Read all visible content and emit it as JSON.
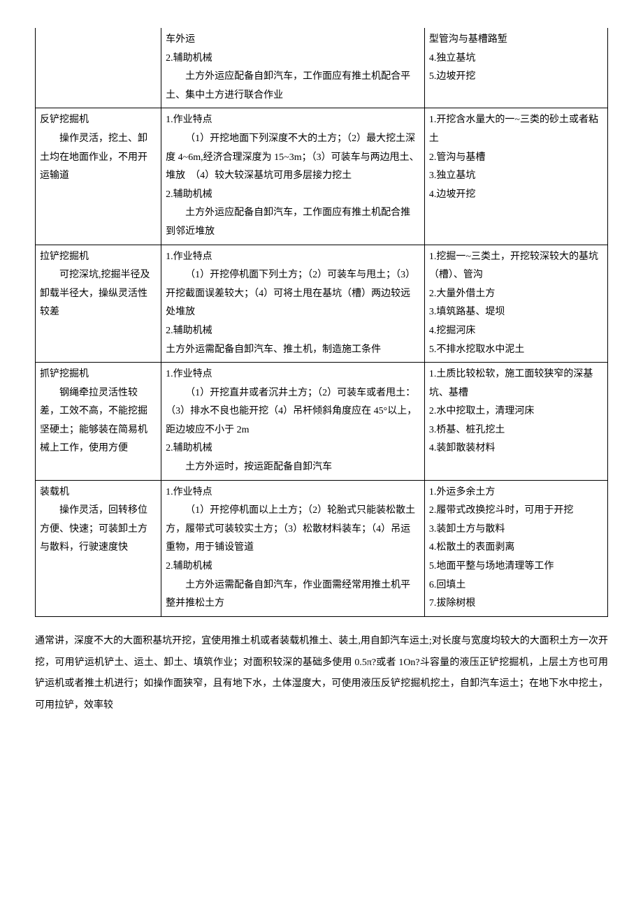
{
  "rows": [
    {
      "c1": "",
      "c2": "车外运\n2.辅助机械\n　　土方外运应配备自卸汽车，工作面应有推土机配合平土、集中土方进行联合作业",
      "c3": "型管沟与基槽路堑\n4.独立基坑\n5.边坡开挖"
    },
    {
      "c1": "反铲挖掘机\n　　操作灵活，挖土、卸土均在地面作业，不用开运输道",
      "c2": "1.作业特点\n　　（1）开挖地面下列深度不大的土方；（2）最大挖土深度 4~6m,经济合理深度为 15~3m；（3）可装车与两边甩土、堆放　（4）较大较深基坑可用多层接力挖土\n2.辅助机械\n　　土方外运应配备自卸汽车，工作面应有推土机配合推到邻近堆放",
      "c3": "1.开挖含水量大的一~三类的砂土或者粘土\n2.管沟与基槽\n3.独立基坑\n4.边坡开挖"
    },
    {
      "c1": "拉铲挖掘机\n　　可挖深坑,挖掘半径及卸载半径大，操纵灵活性较差",
      "c2": "1.作业特点\n　　（1）开挖停机面下列土方；（2）可装车与甩土；（3）开挖截面误差较大；（4）可将土甩在基坑（槽）两边较远处堆放\n2.辅助机械\n土方外运需配备自卸汽车、推土机，制造施工条件",
      "c3": "1.挖掘一~三类土，开挖较深较大的基坑（槽）、管沟\n2.大量外借土方\n3.填筑路基、堤坝\n4.挖掘河床\n5.不排水挖取水中泥土"
    },
    {
      "c1": "抓铲挖掘机\n　　钢绳牵拉灵活性较差，工效不高，不能挖掘坚硬土；能够装在简易机械上工作，使用方便",
      "c2": "1.作业特点\n　　（1）开挖直井或者沉井土方；（2）可装车或者甩土：（3）排水不良也能开挖（4）吊杆倾斜角度应在 45°以上，距边坡应不小于 2m\n2.辅助机械\n　　土方外运时，按运距配备自卸汽车",
      "c3": "1.土质比较松软，施工面较狭窄的深基坑、基槽\n2.水中挖取土，清理河床\n3.桥基、桩孔挖土\n4.装卸散装材料"
    },
    {
      "c1": "装载机\n　　操作灵活，回转移位方便、快速；可装卸土方与散料，行驶速度快",
      "c2": "1.作业特点\n　　（1）开挖停机面以上土方；（2）轮胎式只能装松散土方，履带式可装较实土方；（3）松散材料装车；（4）吊运重物，用于铺设管道\n2.辅助机械\n　　土方外运需配备自卸汽车，作业面需经常用推土机平整并推松土方",
      "c3": "1.外运多余土方\n2.履带式改换挖斗时，可用于开挖\n3.装卸土方与散料\n4.松散土的表面剥离\n5.地面平整与场地清理等工作\n6.回填土\n7.拔除树根"
    }
  ],
  "paragraph": "通常讲，深度不大的大面积基坑开挖，宜使用推土机或者装载机推土、装土,用自卸汽车运土;对长度与宽度均较大的大面积土方一次开挖，可用铲运机铲土、运土、卸土、填筑作业；对面积较深的基础多使用 0.5π?或者 1On?斗容量的液压正铲挖掘机，上层土方也可用铲运机或者推土机进行；如操作面狭窄，且有地下水，土体湿度大，可使用液压反铲挖掘机挖土，自卸汽车运土；在地下水中挖土，可用拉铲，效率较"
}
